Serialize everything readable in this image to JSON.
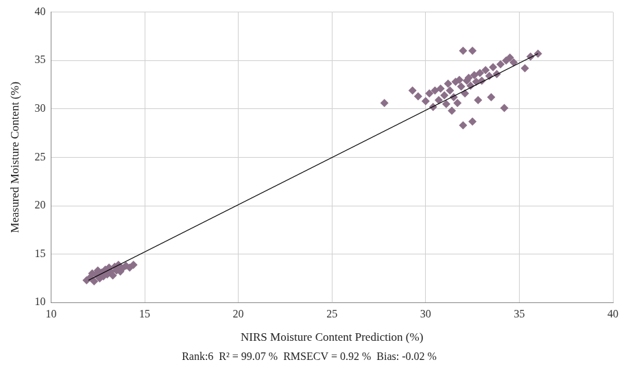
{
  "chart_data": {
    "type": "scatter",
    "x_label": "NIRS Moisture Content Prediction (%)",
    "y_label": "Measured Moisture Content (%)",
    "subtitle": "Rank:6  R² = 99.07 %  RMSECV = 0.92 %  Bias: -0.02 %",
    "xlim": [
      10,
      40
    ],
    "xticks": [
      10,
      15,
      20,
      25,
      30,
      35,
      40
    ],
    "ylim": [
      10,
      40
    ],
    "yticks": [
      10,
      15,
      20,
      25,
      30,
      35,
      40
    ],
    "grid": true,
    "series": [
      {
        "type": "scatter",
        "color": "#8b6f88",
        "marker": "diamond",
        "x": [
          11.9,
          12.1,
          12.3,
          12.4,
          12.6,
          12.7,
          12.8,
          12.9,
          13.0,
          13.1,
          13.2,
          13.3,
          13.4,
          13.5,
          13.6,
          13.8,
          14.0,
          14.2,
          14.4,
          12.2,
          12.5,
          13.7,
          27.8,
          29.3,
          29.6,
          30.0,
          30.2,
          30.4,
          30.5,
          30.7,
          30.8,
          31.0,
          31.1,
          31.2,
          31.3,
          31.5,
          31.6,
          31.7,
          31.8,
          31.9,
          32.0,
          32.0,
          32.1,
          32.2,
          32.3,
          32.4,
          32.5,
          32.5,
          32.6,
          32.7,
          32.9,
          33.0,
          33.2,
          33.4,
          33.5,
          33.6,
          33.8,
          34.0,
          34.2,
          34.3,
          34.5,
          34.7,
          35.3,
          35.6,
          36.0,
          32.8,
          31.4
        ],
        "values": [
          12.3,
          12.6,
          12.2,
          12.9,
          12.5,
          13.1,
          12.7,
          13.4,
          12.9,
          13.6,
          13.2,
          12.8,
          13.7,
          13.3,
          13.9,
          13.5,
          13.8,
          13.6,
          13.9,
          13.0,
          13.3,
          13.2,
          30.6,
          31.9,
          31.3,
          30.8,
          31.6,
          30.2,
          31.9,
          30.9,
          32.1,
          31.4,
          30.5,
          32.6,
          31.9,
          31.2,
          32.8,
          30.6,
          33.0,
          32.3,
          28.3,
          36.0,
          31.6,
          32.9,
          33.2,
          32.4,
          36.0,
          28.7,
          33.5,
          32.8,
          33.7,
          32.9,
          34.0,
          33.4,
          31.2,
          34.3,
          33.6,
          34.6,
          30.1,
          35.0,
          35.3,
          34.8,
          34.2,
          35.4,
          35.7,
          30.9,
          29.8
        ]
      },
      {
        "type": "line",
        "color": "#000000",
        "line_style": "solid",
        "x": [
          12.0,
          36.0
        ],
        "values": [
          12.3,
          35.7
        ]
      }
    ]
  }
}
